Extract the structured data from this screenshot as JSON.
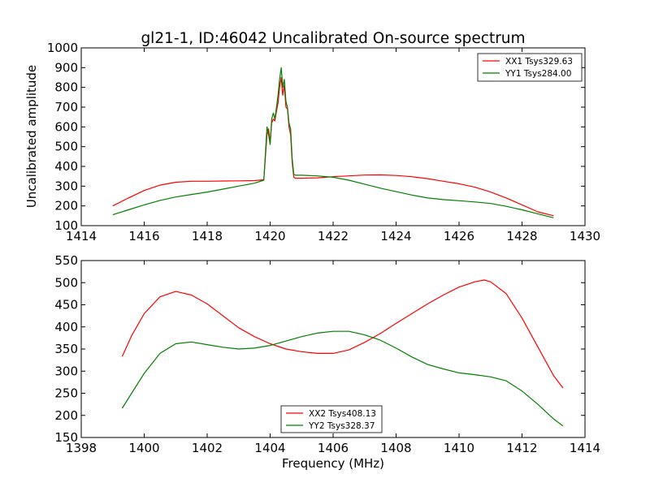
{
  "figure": {
    "title": "gl21-1, ID:46042 Uncalibrated On-source spectrum",
    "ylabel": "Uncalibrated amplitude",
    "xlabel": "Frequency (MHz)"
  },
  "colors": {
    "red": "#ff0000",
    "green": "#008000",
    "axes": "#000000",
    "background": "#ffffff"
  },
  "chart_data": [
    {
      "type": "line",
      "title": "gl21-1, ID:46042 Uncalibrated On-source spectrum",
      "xlabel": "",
      "ylabel": "Uncalibrated amplitude",
      "xlim": [
        1414,
        1430
      ],
      "ylim": [
        100,
        1000
      ],
      "xticks": [
        "1414",
        "1416",
        "1418",
        "1420",
        "1422",
        "1424",
        "1426",
        "1428",
        "1430"
      ],
      "yticks": [
        "100",
        "200",
        "300",
        "400",
        "500",
        "600",
        "700",
        "800",
        "900",
        "1000"
      ],
      "legend": "top-right",
      "grid": false,
      "series": [
        {
          "name": "XX1 Tsys329.63",
          "color": "#ff0000",
          "x": [
            1415.0,
            1415.5,
            1416.0,
            1416.5,
            1417.0,
            1417.5,
            1418.0,
            1418.5,
            1419.0,
            1419.5,
            1419.8,
            1419.9,
            1419.95,
            1420.0,
            1420.05,
            1420.1,
            1420.15,
            1420.2,
            1420.25,
            1420.3,
            1420.35,
            1420.4,
            1420.45,
            1420.5,
            1420.55,
            1420.6,
            1420.65,
            1420.7,
            1420.75,
            1420.8,
            1421.0,
            1421.5,
            1422.0,
            1422.5,
            1423.0,
            1423.5,
            1424.0,
            1424.5,
            1425.0,
            1425.5,
            1426.0,
            1426.5,
            1427.0,
            1427.5,
            1428.0,
            1428.5,
            1429.0
          ],
          "y": [
            200,
            240,
            278,
            305,
            320,
            325,
            325,
            326,
            327,
            328,
            332,
            560,
            590,
            520,
            620,
            640,
            630,
            680,
            720,
            800,
            850,
            760,
            810,
            700,
            690,
            600,
            560,
            420,
            345,
            340,
            340,
            342,
            348,
            352,
            356,
            357,
            354,
            348,
            338,
            325,
            312,
            295,
            270,
            240,
            205,
            170,
            150
          ]
        },
        {
          "name": "YY1 Tsys284.00",
          "color": "#008000",
          "x": [
            1415.0,
            1415.5,
            1416.0,
            1416.5,
            1417.0,
            1417.5,
            1418.0,
            1418.5,
            1419.0,
            1419.5,
            1419.8,
            1419.9,
            1419.95,
            1420.0,
            1420.05,
            1420.1,
            1420.15,
            1420.2,
            1420.25,
            1420.3,
            1420.35,
            1420.4,
            1420.45,
            1420.5,
            1420.55,
            1420.6,
            1420.65,
            1420.7,
            1420.75,
            1420.8,
            1421.0,
            1421.5,
            1422.0,
            1422.5,
            1423.0,
            1423.5,
            1424.0,
            1424.5,
            1425.0,
            1425.5,
            1426.0,
            1426.5,
            1427.0,
            1427.5,
            1428.0,
            1428.5,
            1429.0
          ],
          "y": [
            155,
            180,
            205,
            228,
            245,
            258,
            270,
            285,
            300,
            315,
            330,
            600,
            560,
            510,
            640,
            670,
            640,
            700,
            760,
            840,
            900,
            800,
            840,
            730,
            700,
            620,
            590,
            440,
            360,
            355,
            355,
            352,
            345,
            330,
            310,
            290,
            272,
            255,
            240,
            232,
            226,
            220,
            212,
            198,
            180,
            160,
            140
          ]
        }
      ]
    },
    {
      "type": "line",
      "title": "",
      "xlabel": "Frequency (MHz)",
      "ylabel": "",
      "xlim": [
        1398,
        1414
      ],
      "ylim": [
        150,
        550
      ],
      "xticks": [
        "1398",
        "1400",
        "1402",
        "1404",
        "1406",
        "1408",
        "1410",
        "1412",
        "1414"
      ],
      "yticks": [
        "150",
        "200",
        "250",
        "300",
        "350",
        "400",
        "450",
        "500",
        "550"
      ],
      "legend": "bottom-center",
      "grid": false,
      "series": [
        {
          "name": "XX2 Tsys408.13",
          "color": "#ff0000",
          "x": [
            1399.3,
            1399.6,
            1400.0,
            1400.5,
            1401.0,
            1401.5,
            1402.0,
            1402.5,
            1403.0,
            1403.5,
            1404.0,
            1404.5,
            1405.0,
            1405.5,
            1406.0,
            1406.5,
            1407.0,
            1407.5,
            1408.0,
            1408.5,
            1409.0,
            1409.5,
            1410.0,
            1410.5,
            1410.8,
            1411.0,
            1411.5,
            1412.0,
            1412.5,
            1413.0,
            1413.3
          ],
          "y": [
            333,
            380,
            430,
            468,
            480,
            472,
            452,
            425,
            398,
            378,
            362,
            350,
            344,
            340,
            340,
            348,
            365,
            385,
            408,
            430,
            452,
            472,
            490,
            502,
            506,
            502,
            475,
            420,
            355,
            290,
            262
          ]
        },
        {
          "name": "YY2 Tsys328.37",
          "color": "#008000",
          "x": [
            1399.3,
            1399.6,
            1400.0,
            1400.5,
            1401.0,
            1401.5,
            1402.0,
            1402.5,
            1403.0,
            1403.5,
            1404.0,
            1404.5,
            1405.0,
            1405.5,
            1406.0,
            1406.5,
            1407.0,
            1407.5,
            1408.0,
            1408.5,
            1409.0,
            1409.5,
            1410.0,
            1410.5,
            1411.0,
            1411.5,
            1412.0,
            1412.5,
            1413.0,
            1413.3
          ],
          "y": [
            216,
            250,
            295,
            340,
            362,
            366,
            360,
            354,
            350,
            352,
            358,
            368,
            378,
            386,
            390,
            390,
            382,
            370,
            352,
            332,
            315,
            305,
            296,
            292,
            287,
            278,
            255,
            225,
            192,
            176
          ]
        }
      ]
    }
  ]
}
